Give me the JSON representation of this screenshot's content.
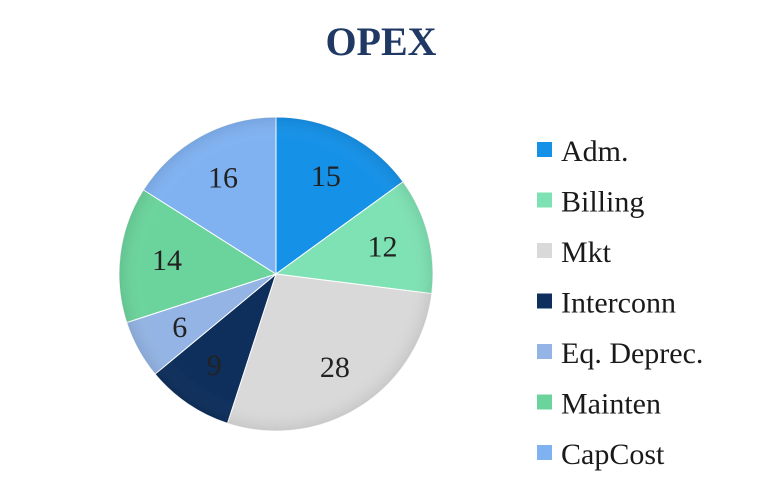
{
  "chart_data": {
    "type": "pie",
    "title": "OPEX",
    "legend_position": "right",
    "slices": [
      {
        "label": "Adm.",
        "value": 15,
        "color": "#1591e8"
      },
      {
        "label": "Billing",
        "value": 12,
        "color": "#7fe2b4"
      },
      {
        "label": "Mkt",
        "value": 28,
        "color": "#d9d9d9"
      },
      {
        "label": "Interconn",
        "value": 9,
        "color": "#0e2f5c"
      },
      {
        "label": "Eq. Deprec.",
        "value": 6,
        "color": "#93b4e4"
      },
      {
        "label": "Mainten",
        "value": 14,
        "color": "#6bd49c"
      },
      {
        "label": "CapCost",
        "value": 16,
        "color": "#80b2f2"
      }
    ]
  }
}
